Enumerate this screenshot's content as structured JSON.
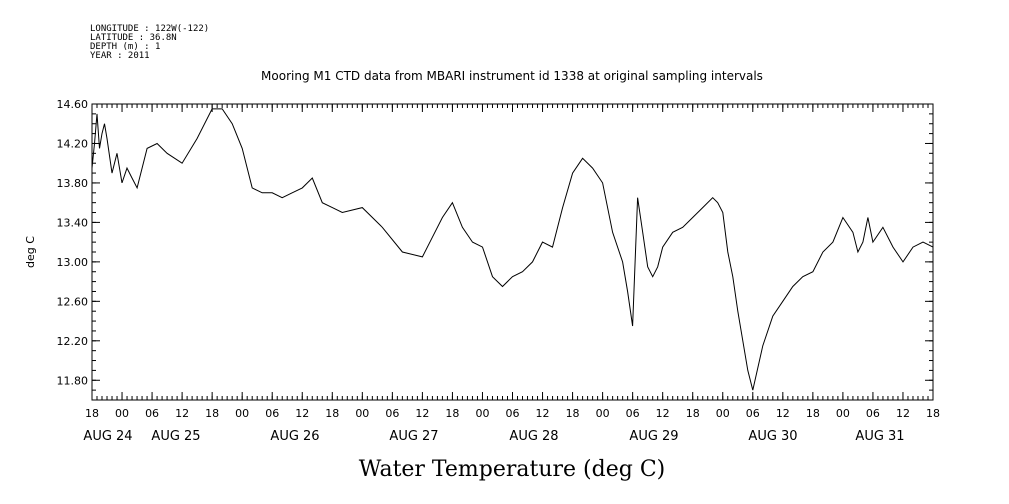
{
  "meta": {
    "longitude": "LONGITUDE : 122W(-122)",
    "latitude": "LATITUDE : 36.8N",
    "depth": "DEPTH (m) : 1",
    "year": "YEAR : 2011"
  },
  "chart_data": {
    "type": "line",
    "title": "Mooring M1 CTD data from MBARI instrument id 1338 at original sampling intervals",
    "ylabel": "deg C",
    "xlabel": "Water Temperature (deg C)",
    "ylim": [
      11.6,
      14.6
    ],
    "xlim": [
      -6,
      162
    ],
    "y_ticks": [
      "14.60",
      "14.20",
      "13.80",
      "13.40",
      "13.00",
      "12.60",
      "12.20",
      "11.80"
    ],
    "x_hour_labels": [
      "18",
      "00",
      "06",
      "12",
      "18",
      "00",
      "06",
      "12",
      "18",
      "00",
      "06",
      "12",
      "18",
      "00",
      "06",
      "12",
      "18",
      "00",
      "06",
      "12",
      "18",
      "00",
      "06",
      "12",
      "18",
      "00",
      "06",
      "12",
      "18"
    ],
    "x_date_labels": [
      "AUG 24",
      "AUG 25",
      "AUG 26",
      "AUG 27",
      "AUG 28",
      "AUG 29",
      "AUG 30",
      "AUG 31"
    ],
    "x_units": "hours since AUG 25 00:00",
    "series": [
      {
        "color": "#000000",
        "x": [
          -6,
          -5.5,
          -5,
          -4.5,
          -4,
          -3.5,
          -3,
          -2,
          -1,
          0,
          1,
          2,
          3,
          4,
          5,
          7,
          9,
          12,
          15,
          18,
          20,
          22,
          24,
          26,
          28,
          30,
          32,
          34,
          36,
          38,
          40,
          42,
          44,
          48,
          52,
          56,
          60,
          62,
          64,
          66,
          68,
          70,
          72,
          74,
          76,
          78,
          80,
          82,
          84,
          86,
          88,
          90,
          92,
          94,
          96,
          98,
          100,
          101,
          102,
          103,
          104,
          105,
          106,
          107,
          108,
          110,
          112,
          114,
          116,
          118,
          119,
          120,
          121,
          122,
          123,
          124,
          125,
          126,
          128,
          130,
          132,
          134,
          136,
          138,
          140,
          142,
          144,
          146,
          147,
          148,
          149,
          150,
          152,
          154,
          156,
          158,
          160,
          162
        ],
        "y": [
          13.95,
          14.2,
          14.5,
          14.15,
          14.3,
          14.4,
          14.25,
          13.9,
          14.1,
          13.8,
          13.95,
          13.85,
          13.75,
          13.95,
          14.15,
          14.2,
          14.1,
          14.0,
          14.25,
          14.55,
          14.55,
          14.4,
          14.15,
          13.75,
          13.7,
          13.7,
          13.65,
          13.7,
          13.75,
          13.85,
          13.6,
          13.55,
          13.5,
          13.55,
          13.35,
          13.1,
          13.05,
          13.25,
          13.45,
          13.6,
          13.35,
          13.2,
          13.15,
          12.85,
          12.75,
          12.85,
          12.9,
          13.0,
          13.2,
          13.15,
          13.55,
          13.9,
          14.05,
          13.95,
          13.8,
          13.3,
          13.0,
          12.7,
          12.35,
          13.65,
          13.3,
          12.95,
          12.85,
          12.95,
          13.15,
          13.3,
          13.35,
          13.45,
          13.55,
          13.65,
          13.6,
          13.5,
          13.1,
          12.85,
          12.5,
          12.2,
          11.9,
          11.7,
          12.15,
          12.45,
          12.6,
          12.75,
          12.85,
          12.9,
          13.1,
          13.2,
          13.45,
          13.3,
          13.1,
          13.2,
          13.45,
          13.2,
          13.35,
          13.15,
          13.0,
          13.15,
          13.2,
          13.15
        ]
      }
    ]
  }
}
